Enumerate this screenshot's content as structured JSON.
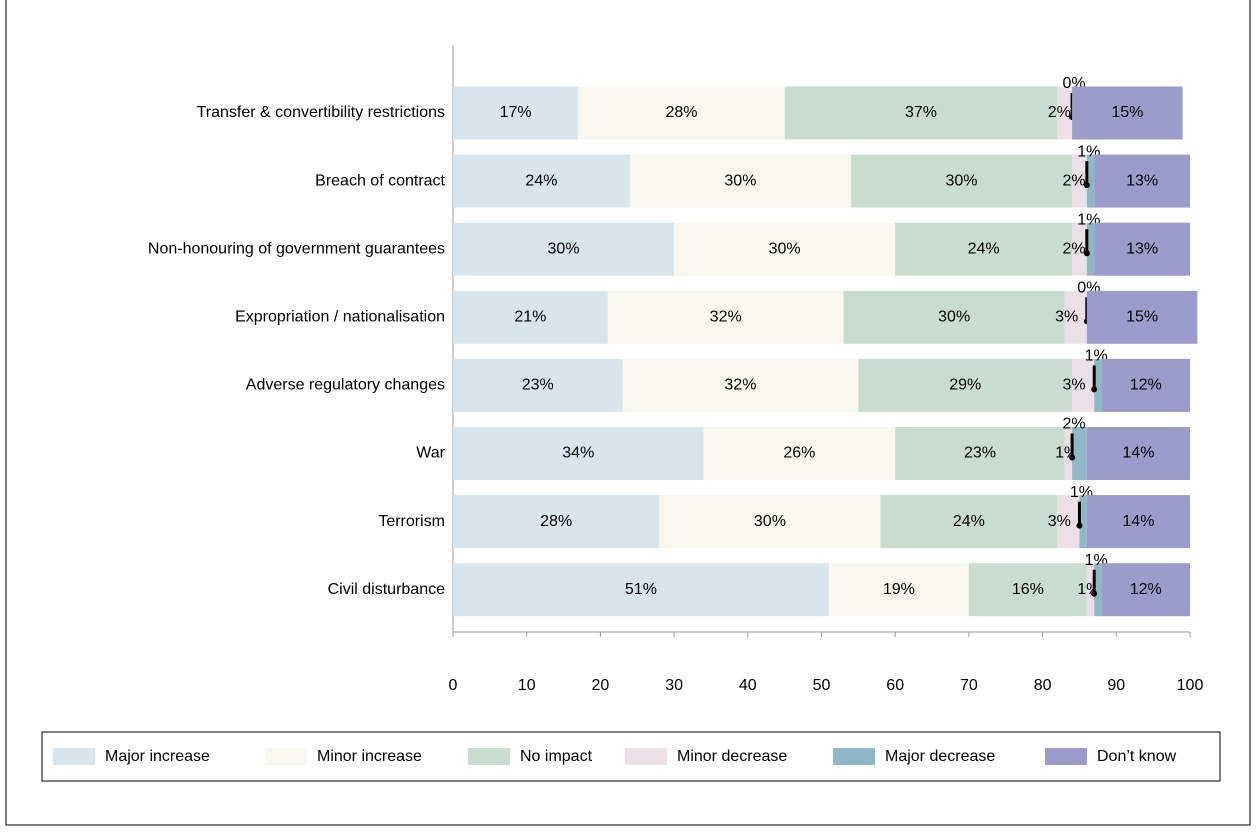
{
  "chart_data": {
    "type": "bar",
    "orientation": "horizontal",
    "stacked": true,
    "categories": [
      "Transfer & convertibility restrictions",
      "Breach of contract",
      "Non-honouring of government guarantees",
      "Expropriation / nationalisation",
      "Adverse regulatory changes",
      "War",
      "Terrorism",
      "Civil disturbance"
    ],
    "series": [
      {
        "name": "Major increase",
        "color": "#d9e5ec",
        "values": [
          17,
          24,
          30,
          21,
          23,
          34,
          28,
          51
        ],
        "value_labels": [
          "17%",
          "24%",
          "30%",
          "21%",
          "23%",
          "34%",
          "28%",
          "51%"
        ]
      },
      {
        "name": "Minor increase",
        "color": "#f8f8ee",
        "values": [
          28,
          30,
          30,
          32,
          32,
          26,
          30,
          19
        ],
        "value_labels": [
          "28%",
          "30%",
          "30%",
          "32%",
          "32%",
          "26%",
          "30%",
          "19%"
        ]
      },
      {
        "name": "No impact",
        "color": "#c9dcd0",
        "values": [
          37,
          30,
          24,
          30,
          29,
          23,
          24,
          16
        ],
        "value_labels": [
          "37%",
          "30%",
          "24%",
          "30%",
          "29%",
          "23%",
          "24%",
          "16%"
        ]
      },
      {
        "name": "Minor decrease",
        "color": "#ecdfe6",
        "values": [
          2,
          2,
          2,
          3,
          3,
          1,
          3,
          1
        ],
        "value_labels": [
          "2%",
          "2%",
          "2%",
          "3%",
          "3%",
          "1%",
          "3%",
          "1%"
        ]
      },
      {
        "name": "Major decrease",
        "color": "#8fb8c6",
        "values": [
          0,
          1,
          1,
          0,
          1,
          2,
          1,
          1
        ],
        "value_labels": [
          "0%",
          "1%",
          "1%",
          "0%",
          "1%",
          "2%",
          "1%",
          "1%"
        ]
      },
      {
        "name": "Don’t know",
        "color": "#9b9ccc",
        "values": [
          15,
          13,
          13,
          15,
          12,
          14,
          14,
          12
        ],
        "value_labels": [
          "15%",
          "13%",
          "13%",
          "15%",
          "12%",
          "14%",
          "14%",
          "12%"
        ]
      }
    ],
    "xlim": [
      0,
      100
    ],
    "xticks": [
      0,
      10,
      20,
      30,
      40,
      50,
      60,
      70,
      80,
      90,
      100
    ],
    "grid": false,
    "legend": "bottom"
  }
}
